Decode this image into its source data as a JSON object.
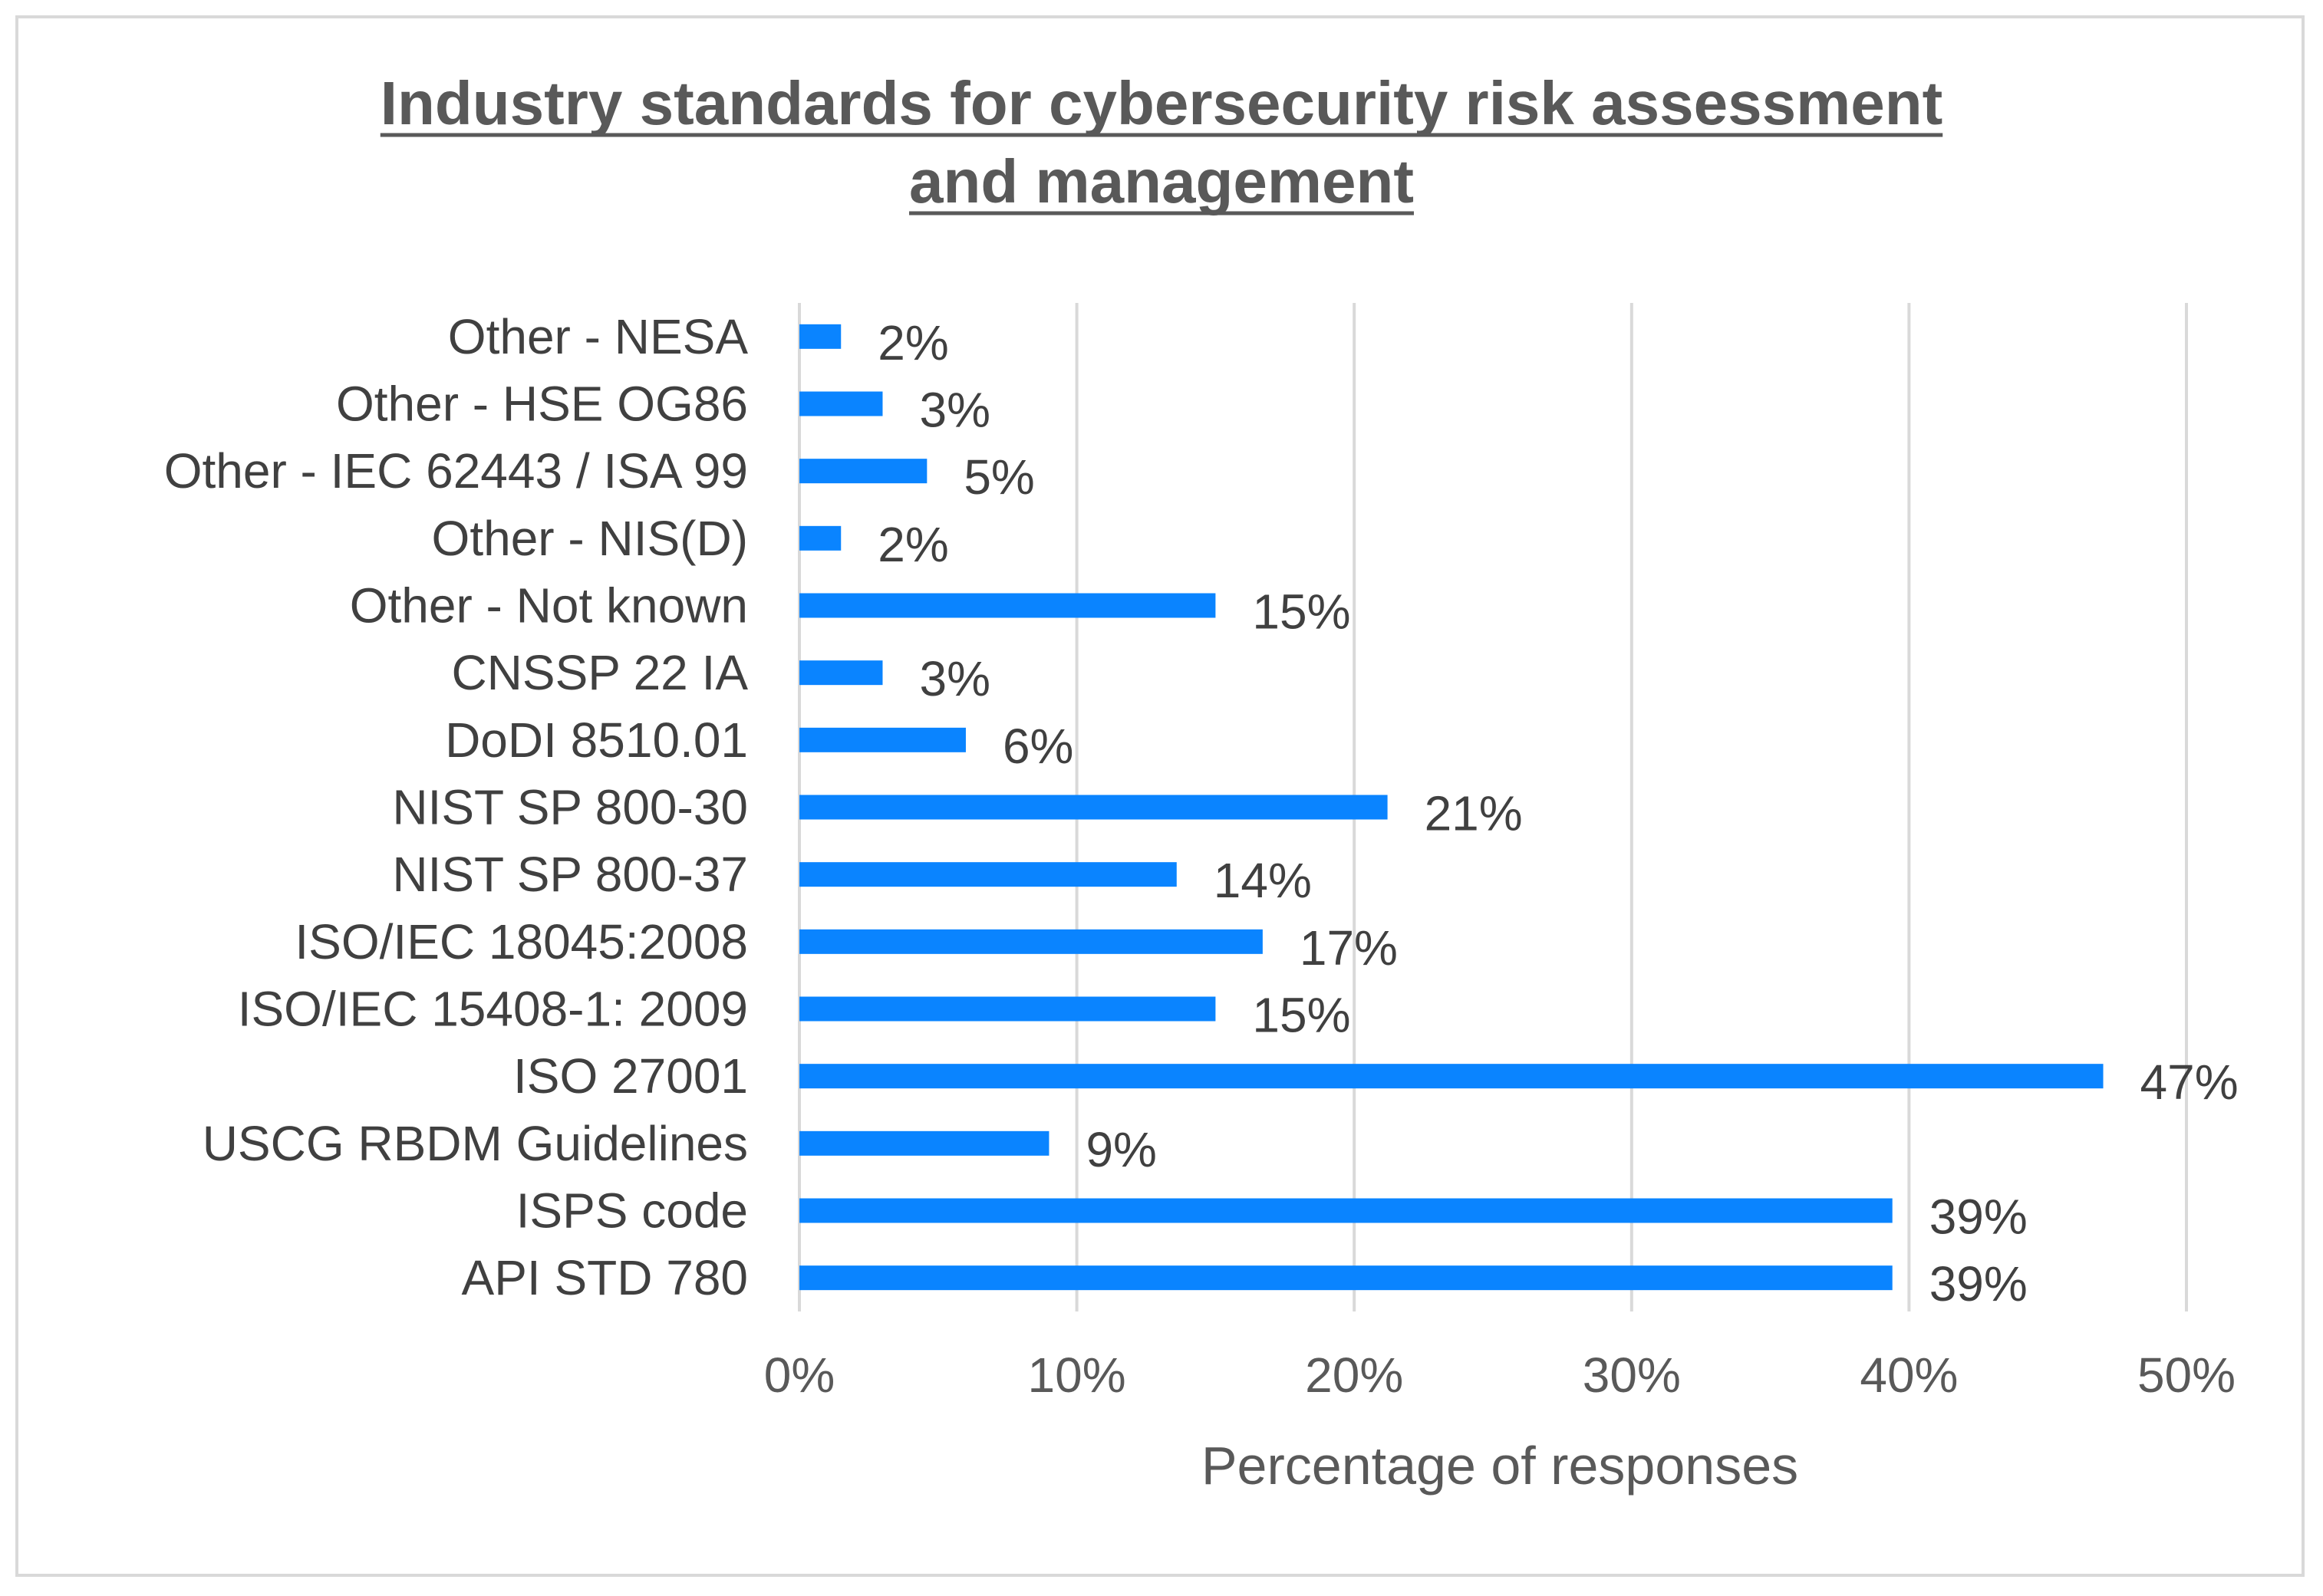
{
  "chart_data": {
    "type": "bar",
    "orientation": "horizontal",
    "title_lines": [
      "Industry standards for cybersecurity risk assessment",
      "and management"
    ],
    "categories": [
      "Other - NESA",
      "Other - HSE OG86",
      "Other - IEC 62443 / ISA 99",
      "Other - NIS(D)",
      "Other - Not known",
      "CNSSP 22 IA",
      "DoDI 8510.01",
      "NIST SP 800-30",
      "NIST SP 800-37",
      "ISO/IEC 18045:2008",
      "ISO/IEC 15408-1: 2009",
      "ISO 27001",
      "USCG RBDM Guidelines",
      "ISPS code",
      "API STD 780"
    ],
    "values": [
      1.5,
      3,
      4.6,
      1.5,
      15,
      3,
      6,
      21.2,
      13.6,
      16.7,
      15,
      47,
      9,
      39.4,
      39.4
    ],
    "value_labels": [
      "2%",
      "3%",
      "5%",
      "2%",
      "15%",
      "3%",
      "6%",
      "21%",
      "14%",
      "17%",
      "15%",
      "47%",
      "9%",
      "39%",
      "39%"
    ],
    "xlabel": "Percentage of responses",
    "xlim": [
      0,
      50
    ],
    "xticks": [
      0,
      10,
      20,
      30,
      40,
      50
    ],
    "xtick_labels": [
      "0%",
      "10%",
      "20%",
      "30%",
      "40%",
      "50%"
    ],
    "grid": "vertical",
    "legend": "none",
    "colors": {
      "bar": "#0a84ff",
      "grid": "#d9d9d9",
      "border": "#d9d9d9"
    }
  }
}
